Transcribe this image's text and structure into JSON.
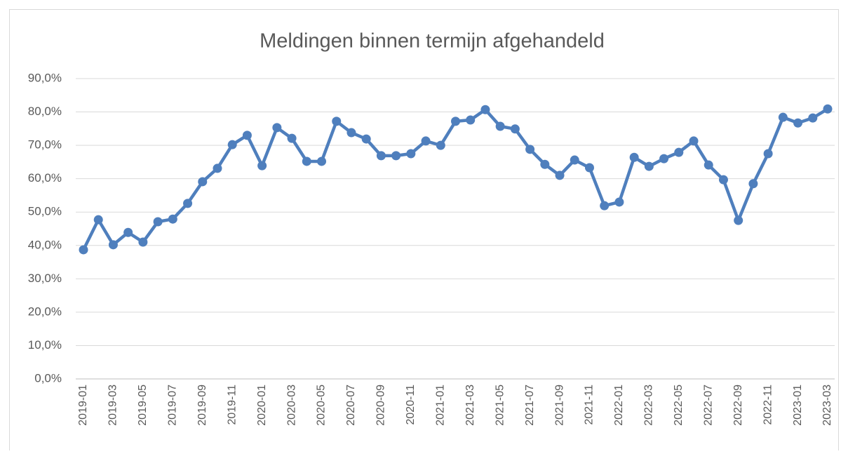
{
  "chart_data": {
    "type": "line",
    "title": "Meldingen binnen termijn afgehandeld",
    "categories": [
      "2019-01",
      null,
      "2019-03",
      null,
      "2019-05",
      null,
      "2019-07",
      null,
      "2019-09",
      null,
      "2019-11",
      null,
      "2020-01",
      null,
      "2020-03",
      null,
      "2020-05",
      null,
      "2020-07",
      null,
      "2020-09",
      null,
      "2020-11",
      null,
      "2021-01",
      null,
      "2021-03",
      null,
      "2021-05",
      null,
      "2021-07",
      null,
      "2021-09",
      null,
      "2021-11",
      null,
      "2022-01",
      null,
      "2022-03",
      null,
      "2022-05",
      null,
      "2022-07",
      null,
      "2022-09",
      null,
      "2022-11",
      null,
      "2023-01",
      null,
      "2023-03"
    ],
    "values": [
      38.7,
      47.7,
      40.2,
      43.9,
      41.0,
      47.1,
      47.9,
      52.6,
      59.1,
      63.1,
      70.2,
      73.0,
      63.9,
      75.3,
      72.1,
      65.2,
      65.2,
      77.2,
      73.8,
      71.9,
      66.9,
      66.9,
      67.5,
      71.3,
      70.0,
      77.2,
      77.6,
      80.7,
      75.7,
      74.9,
      68.8,
      64.3,
      61.0,
      65.6,
      63.3,
      51.9,
      53.0,
      66.4,
      63.7,
      66.0,
      67.9,
      71.3,
      64.1,
      59.7,
      47.5,
      58.5,
      67.5,
      78.4,
      76.7,
      78.2,
      80.9
    ],
    "color": "#4f7fbd",
    "ylim": [
      0,
      90
    ],
    "yticks": [
      {
        "value": 0,
        "label": "0,0%"
      },
      {
        "value": 10,
        "label": "10,0%"
      },
      {
        "value": 20,
        "label": "20,0%"
      },
      {
        "value": 30,
        "label": "30,0%"
      },
      {
        "value": 40,
        "label": "40,0%"
      },
      {
        "value": 50,
        "label": "50,0%"
      },
      {
        "value": 60,
        "label": "60,0%"
      },
      {
        "value": 70,
        "label": "70,0%"
      },
      {
        "value": 80,
        "label": "80,0%"
      },
      {
        "value": 90,
        "label": "90,0%"
      }
    ],
    "grid": true
  }
}
